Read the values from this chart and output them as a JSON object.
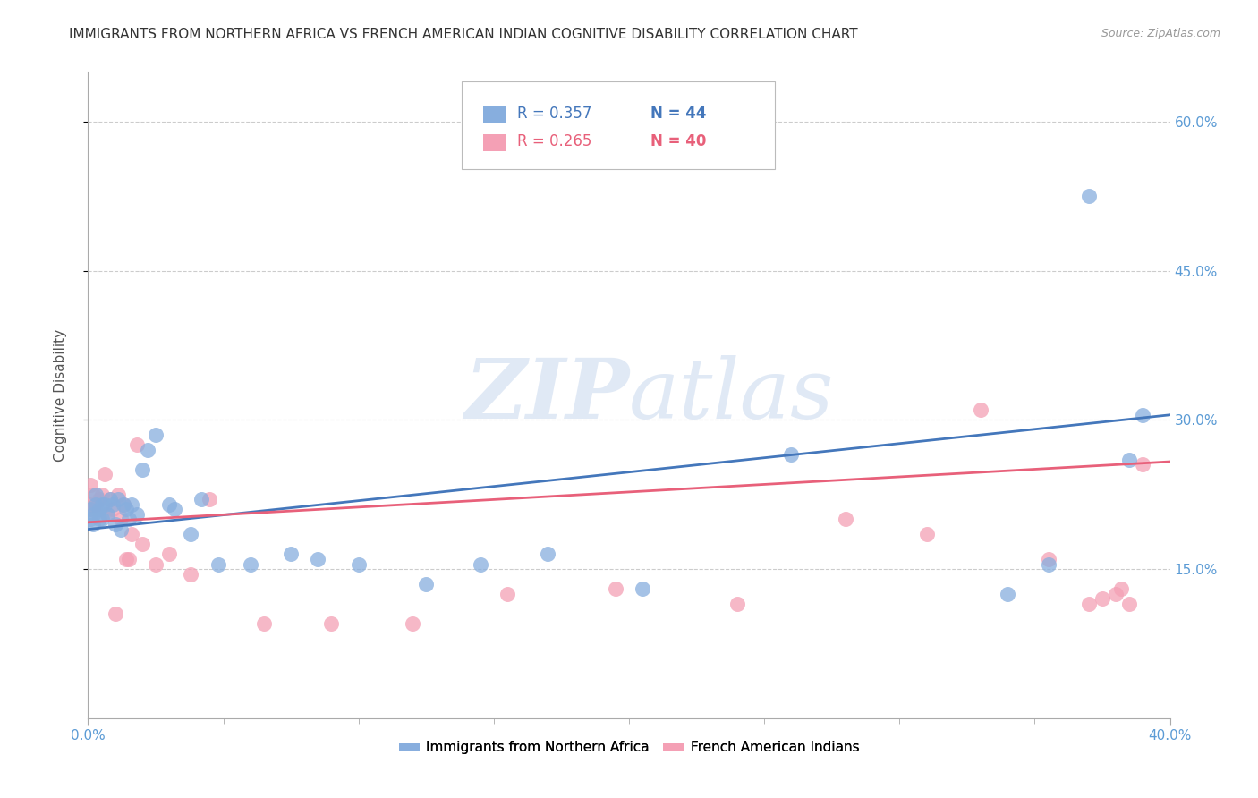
{
  "title": "IMMIGRANTS FROM NORTHERN AFRICA VS FRENCH AMERICAN INDIAN COGNITIVE DISABILITY CORRELATION CHART",
  "source": "Source: ZipAtlas.com",
  "ylabel": "Cognitive Disability",
  "x_min": 0.0,
  "x_max": 0.4,
  "y_min": 0.0,
  "y_max": 0.65,
  "color_blue": "#87AEDE",
  "color_pink": "#F4A0B5",
  "line_color_blue": "#4477BB",
  "line_color_pink": "#E8607A",
  "watermark_zip": "ZIP",
  "watermark_atlas": "atlas",
  "legend_label_blue": "Immigrants from Northern Africa",
  "legend_label_pink": "French American Indians",
  "legend_r1": "R = 0.357",
  "legend_n1": "N = 44",
  "legend_r2": "R = 0.265",
  "legend_n2": "N = 40",
  "blue_scatter_x": [
    0.001,
    0.001,
    0.002,
    0.002,
    0.003,
    0.003,
    0.004,
    0.004,
    0.005,
    0.005,
    0.006,
    0.007,
    0.008,
    0.009,
    0.01,
    0.011,
    0.012,
    0.013,
    0.014,
    0.015,
    0.016,
    0.018,
    0.02,
    0.022,
    0.025,
    0.03,
    0.032,
    0.038,
    0.042,
    0.048,
    0.06,
    0.075,
    0.085,
    0.1,
    0.125,
    0.145,
    0.17,
    0.205,
    0.26,
    0.34,
    0.355,
    0.37,
    0.385,
    0.39
  ],
  "blue_scatter_y": [
    0.21,
    0.2,
    0.195,
    0.205,
    0.215,
    0.225,
    0.2,
    0.21,
    0.215,
    0.2,
    0.215,
    0.205,
    0.22,
    0.215,
    0.195,
    0.22,
    0.19,
    0.215,
    0.21,
    0.2,
    0.215,
    0.205,
    0.25,
    0.27,
    0.285,
    0.215,
    0.21,
    0.185,
    0.22,
    0.155,
    0.155,
    0.165,
    0.16,
    0.155,
    0.135,
    0.155,
    0.165,
    0.13,
    0.265,
    0.125,
    0.155,
    0.525,
    0.26,
    0.305
  ],
  "pink_scatter_x": [
    0.001,
    0.001,
    0.002,
    0.002,
    0.003,
    0.004,
    0.005,
    0.006,
    0.007,
    0.008,
    0.009,
    0.01,
    0.011,
    0.012,
    0.013,
    0.014,
    0.015,
    0.016,
    0.018,
    0.02,
    0.025,
    0.03,
    0.038,
    0.045,
    0.065,
    0.09,
    0.12,
    0.155,
    0.195,
    0.24,
    0.28,
    0.31,
    0.33,
    0.355,
    0.37,
    0.375,
    0.38,
    0.382,
    0.385,
    0.39
  ],
  "pink_scatter_y": [
    0.235,
    0.215,
    0.21,
    0.225,
    0.215,
    0.22,
    0.225,
    0.245,
    0.205,
    0.22,
    0.21,
    0.105,
    0.225,
    0.2,
    0.215,
    0.16,
    0.16,
    0.185,
    0.275,
    0.175,
    0.155,
    0.165,
    0.145,
    0.22,
    0.095,
    0.095,
    0.095,
    0.125,
    0.13,
    0.115,
    0.2,
    0.185,
    0.31,
    0.16,
    0.115,
    0.12,
    0.125,
    0.13,
    0.115,
    0.255
  ],
  "blue_trend_x": [
    0.0,
    0.4
  ],
  "blue_trend_y": [
    0.19,
    0.305
  ],
  "pink_trend_x": [
    0.0,
    0.4
  ],
  "pink_trend_y": [
    0.197,
    0.258
  ],
  "background_color": "#FFFFFF",
  "grid_color": "#CCCCCC",
  "right_axis_color": "#5B9BD5",
  "title_fontsize": 11,
  "axis_label_fontsize": 11,
  "tick_fontsize": 11
}
